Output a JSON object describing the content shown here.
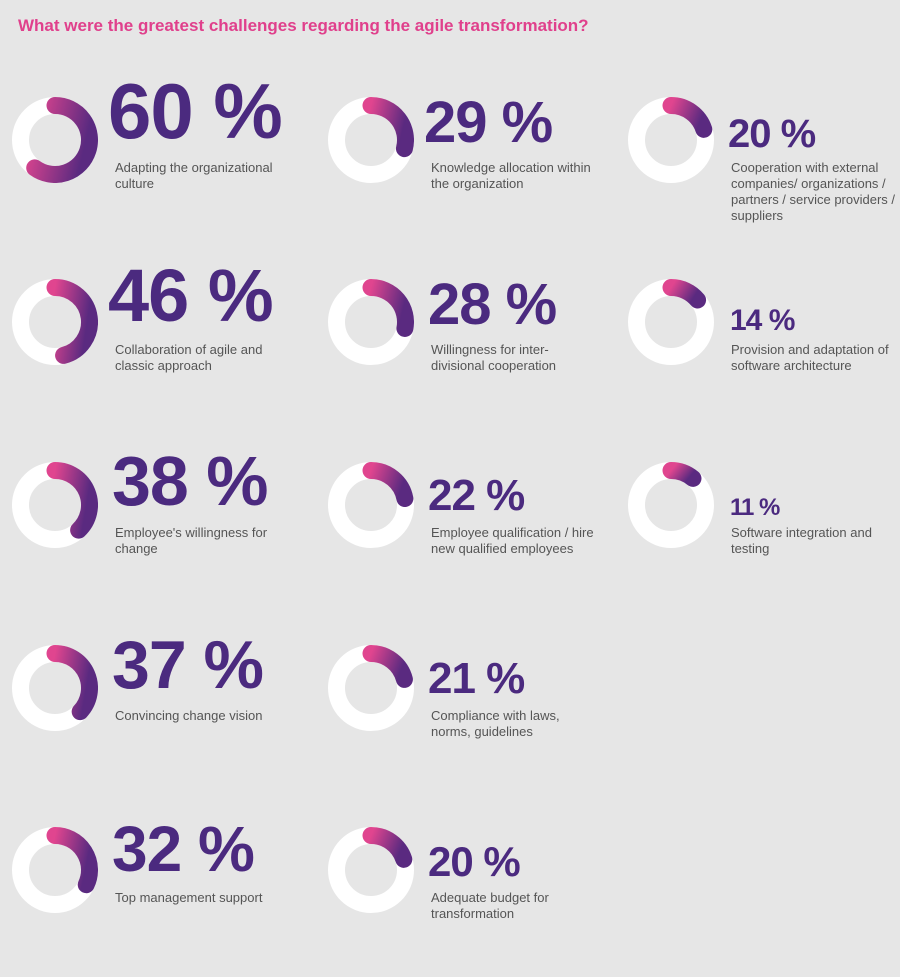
{
  "title": "What were the greatest challenges regarding the agile transformation?",
  "colors": {
    "title": "#e0408c",
    "number": "#4b2a7f",
    "arc_start": "#e0458f",
    "arc_end": "#5a2a80",
    "ring_track": "#ffffff",
    "background": "#e6e6e6"
  },
  "chart_data": {
    "type": "donut-grid",
    "title": "What were the greatest challenges regarding the agile transformation?",
    "unit": "%",
    "items": [
      {
        "value": 60,
        "display": "60 %",
        "label": "Adapting the organizational culture"
      },
      {
        "value": 46,
        "display": "46 %",
        "label": "Collaboration of agile and classic approach"
      },
      {
        "value": 38,
        "display": "38 %",
        "label": "Employee's willingness for change"
      },
      {
        "value": 37,
        "display": "37 %",
        "label": "Convincing change vision"
      },
      {
        "value": 32,
        "display": "32 %",
        "label": "Top management support"
      },
      {
        "value": 29,
        "display": "29 %",
        "label": "Knowledge allocation within the organization"
      },
      {
        "value": 28,
        "display": "28 %",
        "label": "Willingness for inter-divisional cooperation"
      },
      {
        "value": 22,
        "display": "22 %",
        "label": "Employee qualification / hire new qualified employees"
      },
      {
        "value": 21,
        "display": "21 %",
        "label": "Compliance with laws, norms, guidelines"
      },
      {
        "value": 20,
        "display": "20 %",
        "label": "Adequate budget for transformation"
      },
      {
        "value": 20,
        "display": "20 %",
        "label": "Cooperation with external companies/ organizations / partners / service providers / suppliers"
      },
      {
        "value": 14,
        "display": "14 %",
        "label": "Provision and adaptation of software architecture"
      },
      {
        "value": 11,
        "display": "11 %",
        "label": "Software integration and testing"
      }
    ]
  }
}
